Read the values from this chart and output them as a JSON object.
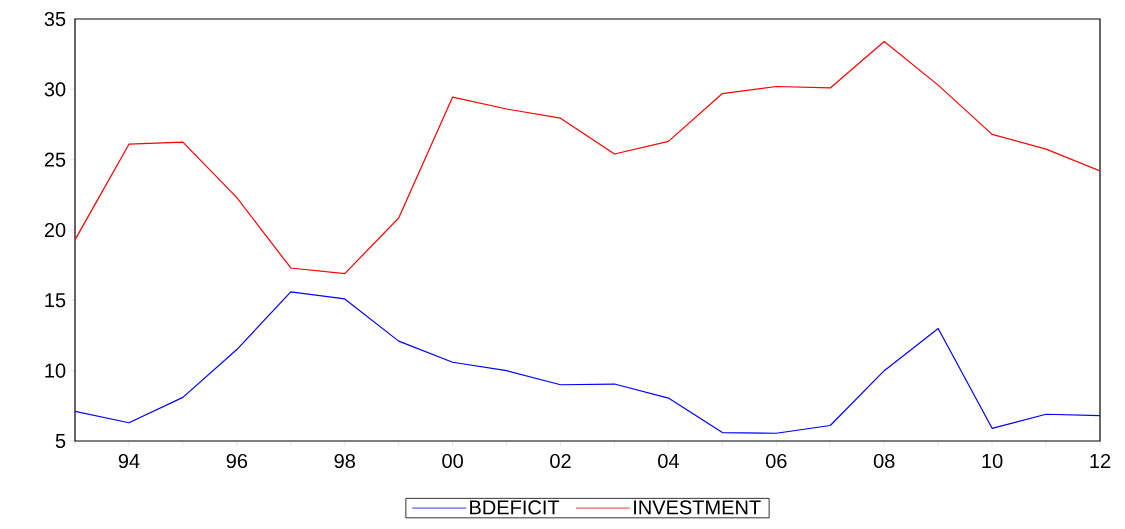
{
  "chart_data": {
    "type": "line",
    "x": [
      1993,
      1994,
      1995,
      1996,
      1997,
      1998,
      1999,
      2000,
      2001,
      2002,
      2003,
      2004,
      2005,
      2006,
      2007,
      2008,
      2009,
      2010,
      2011,
      2012
    ],
    "series": [
      {
        "name": "BDEFICIT",
        "color": "#0000ff",
        "values": [
          7.1,
          6.3,
          8.1,
          11.5,
          15.6,
          15.1,
          12.1,
          10.6,
          10.0,
          9.0,
          9.05,
          8.05,
          5.6,
          5.55,
          6.1,
          10.0,
          13.0,
          5.9,
          6.9,
          6.8
        ]
      },
      {
        "name": "INVESTMENT",
        "color": "#ff0000",
        "values": [
          19.3,
          26.1,
          26.25,
          22.3,
          17.3,
          16.9,
          20.85,
          29.45,
          28.6,
          27.95,
          25.4,
          26.3,
          29.7,
          30.2,
          30.1,
          33.4,
          30.3,
          26.8,
          25.75,
          24.2
        ]
      }
    ],
    "xlim": [
      1993,
      2012
    ],
    "xticks": [
      {
        "value": 1993,
        "label": null
      },
      {
        "value": 1994,
        "label": "94"
      },
      {
        "value": 1995,
        "label": null
      },
      {
        "value": 1996,
        "label": "96"
      },
      {
        "value": 1997,
        "label": null
      },
      {
        "value": 1998,
        "label": "98"
      },
      {
        "value": 1999,
        "label": null
      },
      {
        "value": 2000,
        "label": "00"
      },
      {
        "value": 2001,
        "label": null
      },
      {
        "value": 2002,
        "label": "02"
      },
      {
        "value": 2003,
        "label": null
      },
      {
        "value": 2004,
        "label": "04"
      },
      {
        "value": 2005,
        "label": null
      },
      {
        "value": 2006,
        "label": "06"
      },
      {
        "value": 2007,
        "label": null
      },
      {
        "value": 2008,
        "label": "08"
      },
      {
        "value": 2009,
        "label": null
      },
      {
        "value": 2010,
        "label": "10"
      },
      {
        "value": 2011,
        "label": null
      },
      {
        "value": 2012,
        "label": "12"
      }
    ],
    "ylim": [
      5,
      35
    ],
    "yticks": [
      5,
      10,
      15,
      20,
      25,
      30,
      35
    ],
    "grid": false,
    "legend": "bottom",
    "marker": "none",
    "line_style": "solid"
  }
}
